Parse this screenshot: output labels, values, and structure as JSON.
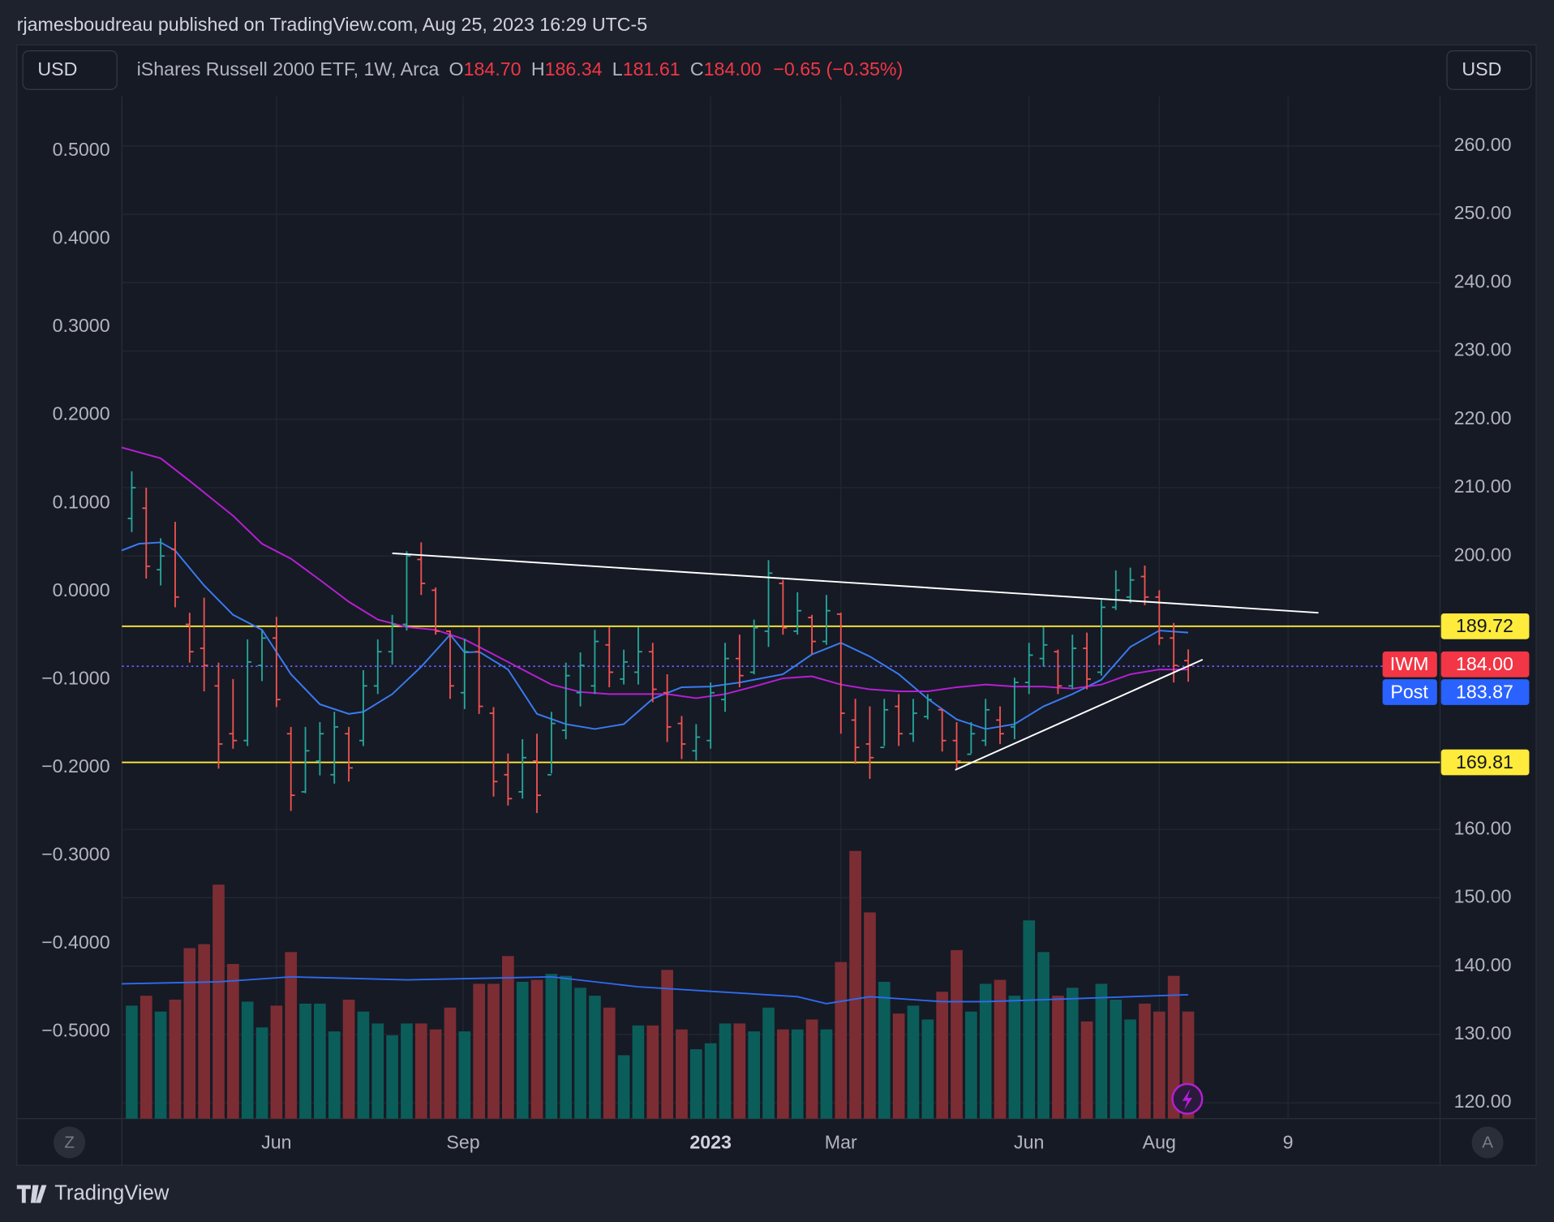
{
  "header": {
    "published": "rjamesboudreau published on TradingView.com, Aug 25, 2023 16:29 UTC-5",
    "currency_left": "USD",
    "currency_right": "USD",
    "symbol": "iShares Russell 2000 ETF, 1W, Arca",
    "o_label": "O",
    "o": "184.70",
    "h_label": "H",
    "h": "186.34",
    "l_label": "L",
    "l": "181.61",
    "c_label": "C",
    "c": "184.00",
    "change": "−0.65 (−0.35%)"
  },
  "corner_left": "Z",
  "corner_right": "A",
  "footer": "TradingView",
  "chart_data": {
    "type": "ohlc",
    "up_color": "#26a69a",
    "down_color": "#ef5350",
    "up_volume_color": "#0b5d5a",
    "down_volume_color": "#7c2d33",
    "open": [
      205.5,
      207,
      198,
      201,
      190,
      186.5,
      181,
      174,
      173,
      184,
      188,
      174,
      165.5,
      170,
      168,
      174,
      173,
      181,
      186,
      190,
      199.5,
      195,
      189,
      180,
      186,
      177,
      168,
      165.5,
      170,
      168,
      174.5,
      180,
      181,
      187,
      182,
      183,
      186,
      180,
      175.5,
      171.5,
      173,
      179,
      185,
      183,
      189,
      196,
      189,
      191,
      187.5,
      191.5,
      176,
      172.5,
      172,
      178,
      174,
      176.5,
      177.5,
      173,
      171,
      173,
      176,
      175,
      181.5,
      185,
      186,
      181,
      186.5,
      183,
      192.5,
      194,
      197,
      194,
      188,
      184.7
    ],
    "high": [
      212.4,
      210,
      202.6,
      205,
      191.7,
      193.9,
      184.4,
      182,
      187.8,
      189.2,
      191.1,
      175,
      175,
      175.7,
      177.2,
      175,
      183.3,
      187.8,
      191.4,
      200.7,
      202,
      195.4,
      189.1,
      187.9,
      189.6,
      177.9,
      171.1,
      173.2,
      174,
      177.2,
      184.4,
      185.9,
      189.2,
      189.6,
      186.3,
      189.6,
      187.3,
      182.7,
      176.6,
      175.4,
      181.5,
      187.3,
      188.5,
      190.7,
      199.4,
      196.5,
      194.7,
      191.4,
      194.3,
      191.7,
      179.1,
      178,
      179.1,
      179.8,
      179.1,
      179.8,
      177.6,
      175.7,
      175.7,
      179.1,
      178,
      182.2,
      187.3,
      189.6,
      186.3,
      188.5,
      188.8,
      193.6,
      197.9,
      198.3,
      198.6,
      195,
      190.2,
      186.34
    ],
    "low": [
      203.5,
      196.7,
      195.7,
      192.5,
      184.4,
      180.2,
      168.9,
      171.8,
      172.2,
      181.7,
      177.9,
      162.7,
      165.3,
      167.9,
      166.7,
      167,
      172.2,
      179.8,
      184.1,
      189.1,
      194.3,
      188.5,
      179.1,
      177.6,
      176.9,
      164.8,
      163.5,
      164.5,
      162.4,
      168.2,
      173.2,
      178,
      179.8,
      180.8,
      181.2,
      181.2,
      178.6,
      172.8,
      170.3,
      170.1,
      171.8,
      177.2,
      180.8,
      182.7,
      186.7,
      188.5,
      188.5,
      185.6,
      187,
      174,
      169.6,
      167.4,
      172.2,
      172.2,
      172.8,
      176.1,
      171.4,
      168.9,
      171.1,
      172.2,
      172.5,
      173.2,
      179.8,
      183.8,
      179.8,
      180.5,
      180.5,
      182.5,
      192.1,
      193.1,
      192.8,
      187,
      181.5,
      181.61
    ],
    "close": [
      210,
      198.5,
      200,
      194,
      186,
      184,
      172.5,
      173,
      184.5,
      188,
      179,
      165,
      171.5,
      174,
      175,
      169,
      181,
      186,
      190,
      200,
      196,
      189,
      181,
      186,
      178,
      167,
      164.5,
      170.5,
      165,
      175.5,
      182.5,
      184,
      187.5,
      183,
      184.5,
      186,
      180.5,
      175,
      172.5,
      173.5,
      180,
      185,
      182.5,
      189.5,
      197.5,
      189.5,
      192,
      187.5,
      192,
      177,
      172,
      170.5,
      177.5,
      174,
      177,
      179,
      173,
      170,
      174,
      177.5,
      174,
      181.5,
      185.5,
      187,
      181,
      186.5,
      182,
      192.5,
      195,
      196.5,
      194,
      188,
      184,
      184
    ],
    "volume": [
      57,
      62,
      54,
      60,
      86,
      88,
      118,
      78,
      59,
      46,
      57,
      84,
      58,
      58,
      44,
      60,
      54,
      48,
      42,
      48,
      48,
      45,
      56,
      44,
      68,
      68,
      82,
      69,
      70,
      73,
      72,
      66,
      62,
      56,
      32,
      47,
      47,
      75,
      45,
      35,
      38,
      48,
      48,
      44,
      56,
      45,
      45,
      50,
      45,
      79,
      135,
      104,
      69,
      53,
      57,
      50,
      64,
      85,
      54,
      68,
      70,
      62,
      100,
      84,
      62,
      66,
      49,
      68,
      60,
      50,
      58,
      54,
      72,
      54
    ],
    "moving_averages": [
      {
        "color": "#3a7bf2",
        "x": [
          -0.7,
          0.5,
          2,
          3,
          5,
          7,
          9,
          11,
          13,
          15,
          16,
          18,
          20,
          22,
          23,
          24,
          26,
          28,
          30,
          32,
          34,
          36,
          38,
          40,
          42,
          45,
          47,
          49,
          51,
          53,
          55,
          57,
          59,
          61,
          63,
          65,
          67,
          69,
          71,
          73
        ],
        "values": [
          200.8,
          201.8,
          202.0,
          200.8,
          195.7,
          191.4,
          189.2,
          182.7,
          178.3,
          176.9,
          177.2,
          179.8,
          183.8,
          188.5,
          185.9,
          186.0,
          183.4,
          176.9,
          175.4,
          174.7,
          175.4,
          179.1,
          180.8,
          180.9,
          181.5,
          182.7,
          185.6,
          187.3,
          185.3,
          182.7,
          179.1,
          176.1,
          174.7,
          175.4,
          178.0,
          179.8,
          181.9,
          186.7,
          189.1,
          188.8
        ]
      },
      {
        "color": "#b61fd3",
        "x": [
          -0.7,
          2,
          4,
          7,
          9,
          11,
          13,
          15,
          17,
          19,
          21,
          23,
          25,
          27,
          29,
          31,
          33,
          35,
          37,
          39,
          41,
          43,
          45,
          47,
          49,
          51,
          53,
          55,
          57,
          59,
          61,
          63,
          65,
          67,
          69,
          71,
          73
        ],
        "values": [
          215.9,
          214.3,
          211.0,
          205.9,
          201.8,
          199.6,
          196.5,
          193.3,
          190.7,
          189.6,
          189.2,
          187.8,
          185.6,
          183.4,
          181.2,
          180.1,
          179.8,
          179.8,
          179.8,
          179.2,
          179.8,
          180.9,
          182.1,
          182.4,
          181.2,
          180.5,
          180.2,
          180.2,
          180.8,
          181.2,
          180.9,
          180.9,
          180.6,
          181.2,
          182.7,
          183.4,
          183.4
        ]
      }
    ],
    "volume_ma": {
      "color": "#2f6bf0",
      "x": [
        -0.7,
        6,
        11,
        19,
        29,
        35,
        46,
        48,
        51,
        56,
        59,
        65,
        73
      ],
      "values": [
        68,
        69,
        71.5,
        70,
        71.5,
        66.5,
        61.5,
        58,
        61.5,
        59,
        59,
        60.5,
        62.5
      ]
    },
    "trendlines": [
      {
        "color": "#ffffff",
        "x": [
          18.0,
          82.0
        ],
        "y": [
          200.4,
          191.7
        ]
      },
      {
        "color": "#ffffff",
        "x": [
          56.9,
          74.0
        ],
        "y": [
          168.7,
          184.85
        ]
      }
    ],
    "hlines": [
      {
        "value": 189.72,
        "label": "189.72",
        "color": "#ffeb3b"
      },
      {
        "value": 169.81,
        "label": "169.81",
        "color": "#ffeb3b"
      }
    ],
    "last_price": {
      "name": "IWM",
      "value": 184,
      "label": "184.00",
      "color": "#f23645"
    },
    "post_price": {
      "name": "Post",
      "value": 183.87,
      "color": "#2962ff"
    },
    "xlim": [
      -0.68,
      90.4
    ],
    "xticks": [
      {
        "value": 10,
        "label": "Jun"
      },
      {
        "value": 22.9,
        "label": "Sep"
      },
      {
        "value": 40,
        "label": "2023"
      },
      {
        "value": 49,
        "label": "Mar"
      },
      {
        "value": 62,
        "label": "Jun"
      },
      {
        "value": 71,
        "label": "Aug"
      },
      {
        "value": 79.9,
        "label": "9"
      }
    ],
    "ylim": [
      117.68,
      267.25
    ],
    "yticks": [
      {
        "value": 260,
        "label": "260.00"
      },
      {
        "value": 250,
        "label": "250.00"
      },
      {
        "value": 240,
        "label": "240.00"
      },
      {
        "value": 230,
        "label": "230.00"
      },
      {
        "value": 220,
        "label": "220.00"
      },
      {
        "value": 210,
        "label": "210.00"
      },
      {
        "value": 200,
        "label": "200.00"
      },
      {
        "value": 160,
        "label": "160.00"
      },
      {
        "value": 150,
        "label": "150.00"
      },
      {
        "value": 140,
        "label": "140.00"
      },
      {
        "value": 130,
        "label": "130.00"
      },
      {
        "value": 120,
        "label": "120.00"
      }
    ],
    "y2lim": [
      -0.599,
      0.562
    ],
    "y2ticks": [
      {
        "value": 0.5,
        "label": "0.5000"
      },
      {
        "value": 0.4,
        "label": "0.4000"
      },
      {
        "value": 0.3,
        "label": "0.3000"
      },
      {
        "value": 0.2,
        "label": "0.2000"
      },
      {
        "value": 0.1,
        "label": "0.1000"
      },
      {
        "value": 0,
        "label": "0.0000"
      },
      {
        "value": -0.1,
        "label": "−0.1000"
      },
      {
        "value": -0.2,
        "label": "−0.2000"
      },
      {
        "value": -0.3,
        "label": "−0.3000"
      },
      {
        "value": -0.4,
        "label": "−0.4000"
      },
      {
        "value": -0.5,
        "label": "−0.5000"
      }
    ],
    "grid": true
  }
}
